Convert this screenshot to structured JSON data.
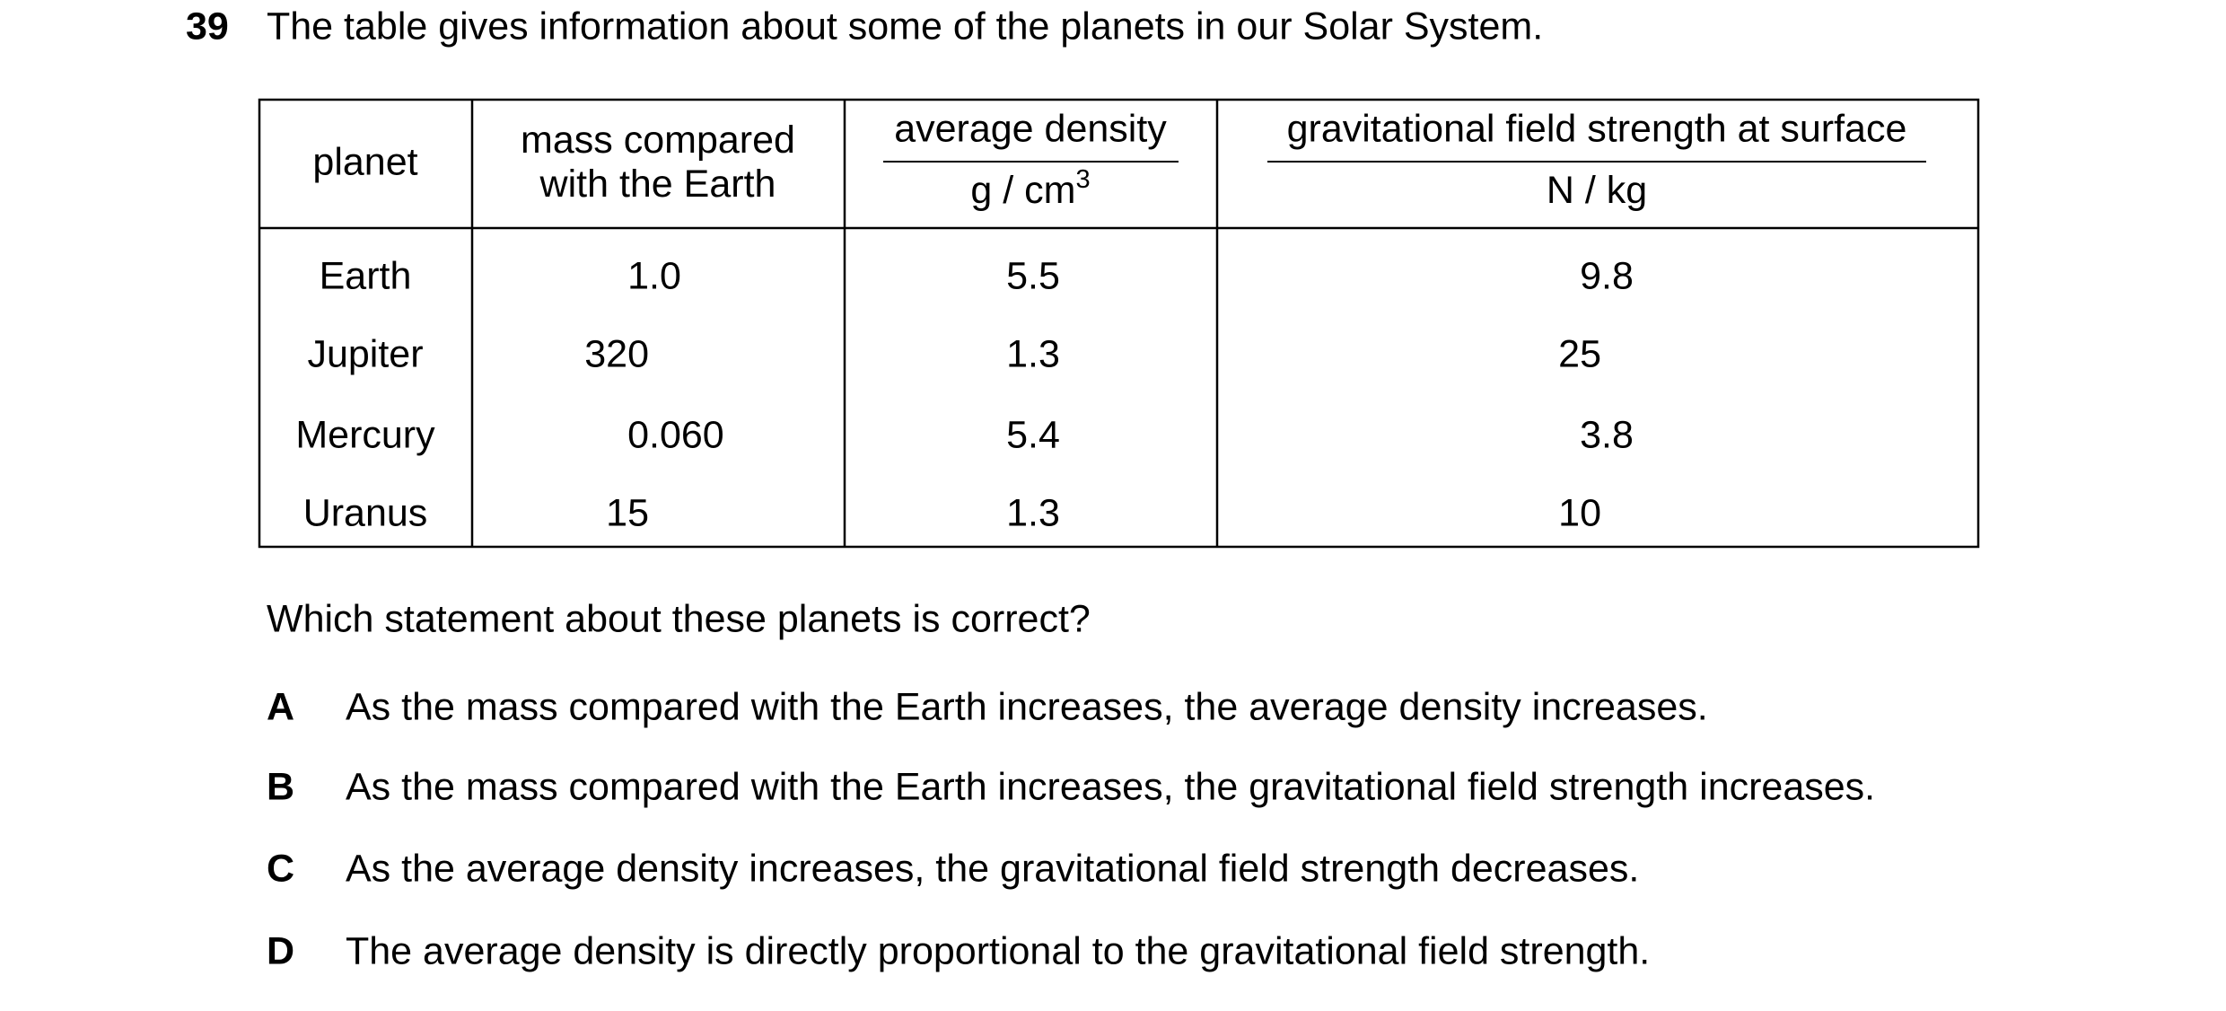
{
  "question": {
    "number": "39",
    "text": "The table gives information about some of the planets in our Solar System."
  },
  "table": {
    "headers": [
      {
        "lines": [
          "planet"
        ]
      },
      {
        "lines": [
          "mass compared",
          "with the Earth"
        ]
      },
      {
        "quantity": "average density",
        "unit": "g / cm",
        "unit_sup": "3"
      },
      {
        "quantity": "gravitational field strength at surface",
        "unit": "N / kg"
      }
    ],
    "rows": [
      [
        "Earth",
        "1.0",
        "5.5",
        "9.8"
      ],
      [
        "Jupiter",
        "320",
        "1.3",
        "25"
      ],
      [
        "Mercury",
        "0.060",
        "5.4",
        "3.8"
      ],
      [
        "Uranus",
        "15",
        "1.3",
        "10"
      ]
    ]
  },
  "prompt": "Which statement about these planets is correct?",
  "options": [
    {
      "letter": "A",
      "text": "As the mass compared with the Earth increases, the average density increases."
    },
    {
      "letter": "B",
      "text": "As the mass compared with the Earth increases, the gravitational field strength increases."
    },
    {
      "letter": "C",
      "text": "As the average density increases, the gravitational field strength decreases."
    },
    {
      "letter": "D",
      "text": "The average density is directly proportional to the gravitational field strength."
    }
  ]
}
